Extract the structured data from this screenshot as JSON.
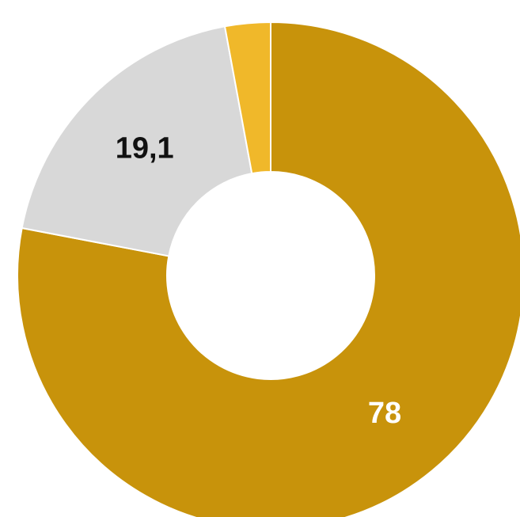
{
  "chart_data": {
    "type": "pie",
    "variant": "donut",
    "values": [
      78,
      19.1,
      2.9
    ],
    "labels": [
      "78",
      "19,1",
      ""
    ],
    "colors": [
      "#C8930B",
      "#D8D8D8",
      "#F0B82A"
    ],
    "label_colors": [
      "#FFFFFF",
      "#111111",
      "#111111"
    ],
    "start_angle_deg": 0,
    "direction": "clockwise"
  }
}
